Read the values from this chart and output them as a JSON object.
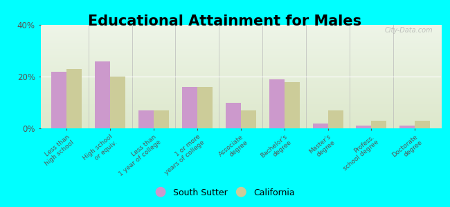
{
  "title": "Educational Attainment for Males",
  "categories": [
    "Less than\nhigh school",
    "High school\nor equiv.",
    "Less than\n1 year of college",
    "1 or more\nyears of college",
    "Associate\ndegree",
    "Bachelor's\ndegree",
    "Master's\ndegree",
    "Profess.\nschool degree",
    "Doctorate\ndegree"
  ],
  "south_sutter": [
    22,
    26,
    7,
    16,
    10,
    19,
    2,
    1,
    1
  ],
  "california": [
    23,
    20,
    7,
    16,
    7,
    18,
    7,
    3,
    3
  ],
  "south_sutter_color": "#cc99cc",
  "california_color": "#cccc99",
  "background_color": "#00ffff",
  "plot_bg_top": "#eef5e8",
  "plot_bg_bottom": "#dde8cc",
  "ylim": [
    0,
    40
  ],
  "yticks": [
    0,
    20,
    40
  ],
  "ytick_labels": [
    "0%",
    "20%",
    "40%"
  ],
  "bar_width": 0.35,
  "legend_labels": [
    "South Sutter",
    "California"
  ],
  "watermark": "City-Data.com",
  "title_fontsize": 15,
  "tick_fontsize": 6.5
}
